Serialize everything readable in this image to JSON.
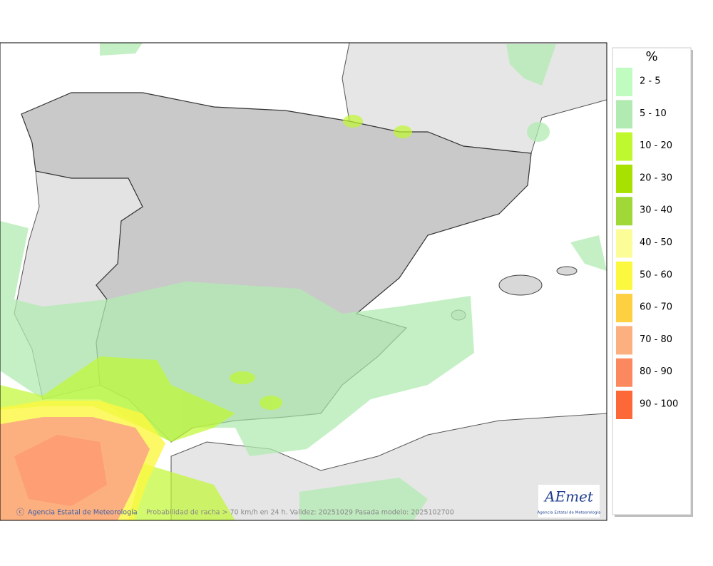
{
  "legend": {
    "title": "%",
    "items": [
      {
        "label": "2 - 5",
        "color": "#c0fcc0"
      },
      {
        "label": "5 - 10",
        "color": "#b2ebb2"
      },
      {
        "label": "10 - 20",
        "color": "#c0f830"
      },
      {
        "label": "20 - 30",
        "color": "#a8e000"
      },
      {
        "label": "30 - 40",
        "color": "#a0d838"
      },
      {
        "label": "40 - 50",
        "color": "#fcfc98"
      },
      {
        "label": "50 - 60",
        "color": "#fcf840"
      },
      {
        "label": "60 - 70",
        "color": "#fcd040"
      },
      {
        "label": "70 - 80",
        "color": "#fcb080"
      },
      {
        "label": "80 - 90",
        "color": "#fc8860"
      },
      {
        "label": "90 - 100",
        "color": "#fc6838"
      }
    ]
  },
  "footer": {
    "credit": "Agencia Estatal de Meteorología",
    "caption": "Probabilidad de racha > 70 km/h en 24 h. Validez: 20251029 Pasada modelo: 2025102700"
  },
  "logo": {
    "text": "AEmet",
    "subtitle": "Agencia Estatal de Meteorología"
  }
}
